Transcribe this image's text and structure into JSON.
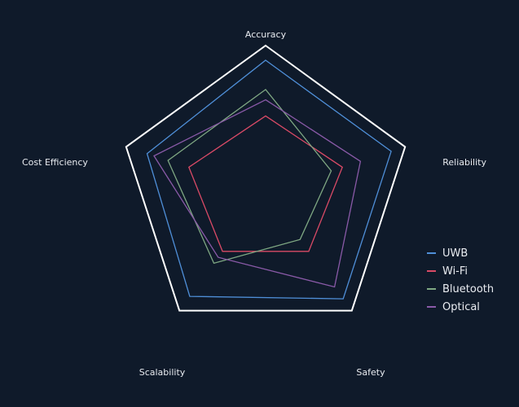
{
  "chart_data": {
    "type": "radar",
    "axes": [
      "Accuracy",
      "Reliability",
      "Safety",
      "Scalability",
      "Cost Efficiency"
    ],
    "range": [
      0,
      100
    ],
    "grid": false,
    "legend_position": "right",
    "series": [
      {
        "name": "UWB",
        "color": "#4f8fd8",
        "values": [
          90,
          90,
          90,
          88,
          85
        ]
      },
      {
        "name": "Wi-Fi",
        "color": "#d94a66",
        "values": [
          52,
          55,
          50,
          50,
          55
        ]
      },
      {
        "name": "Bluetooth",
        "color": "#7fa883",
        "values": [
          70,
          47,
          40,
          60,
          70
        ]
      },
      {
        "name": "Optical",
        "color": "#8a5aa8",
        "values": [
          63,
          68,
          80,
          55,
          80
        ]
      }
    ]
  },
  "colors": {
    "background": "#0f1a2a",
    "frame": "#ffffff",
    "text": "#e8ebf0"
  }
}
